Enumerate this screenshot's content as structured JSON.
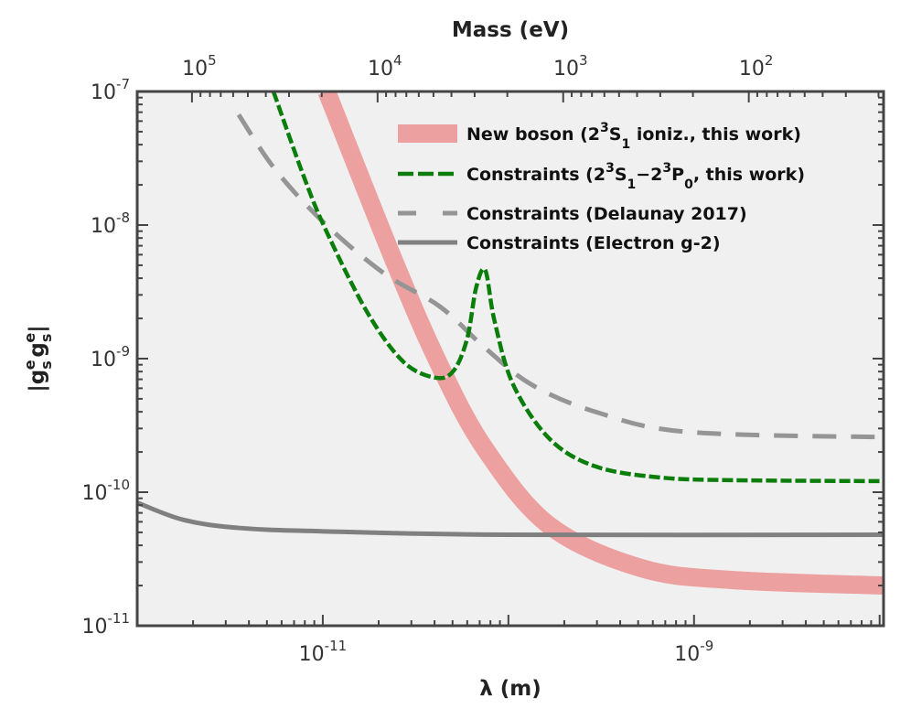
{
  "chart_data": {
    "type": "line",
    "xlabel": "λ (m)",
    "ylabel": "|g_s^e g_s^e|",
    "top_xlabel": "Mass (eV)",
    "xscale": "log",
    "yscale": "log",
    "xlim": [
      1e-12,
      1.05e-08
    ],
    "ylim": [
      1e-11,
      1e-07
    ],
    "x_ticks": [
      {
        "value": 1e-11,
        "base": "10",
        "exp": "-11"
      },
      {
        "value": 1e-09,
        "base": "10",
        "exp": "-9"
      }
    ],
    "y_ticks": [
      {
        "value": 1e-07,
        "base": "10",
        "exp": "-7"
      },
      {
        "value": 1e-08,
        "base": "10",
        "exp": "-8"
      },
      {
        "value": 1e-09,
        "base": "10",
        "exp": "-9"
      },
      {
        "value": 1e-10,
        "base": "10",
        "exp": "-10"
      },
      {
        "value": 1e-11,
        "base": "10",
        "exp": "-11"
      }
    ],
    "top_ticks": [
      {
        "mass_eV": 100000.0,
        "base": "10",
        "exp": "5"
      },
      {
        "mass_eV": 10000.0,
        "base": "10",
        "exp": "4"
      },
      {
        "mass_eV": 1000.0,
        "base": "10",
        "exp": "3"
      },
      {
        "mass_eV": 100.0,
        "base": "10",
        "exp": "2"
      }
    ],
    "background_color": "#f0f0f0",
    "legend_position": "top-right",
    "series": [
      {
        "name": "New boson (2³S₁ ioniz., this work)",
        "legend": {
          "pre": "New boson (2",
          "sup1": "3",
          "mid1": "S",
          "sub1": "1",
          "post": " ioniz., this work)"
        },
        "color": "#eda0a0",
        "style": "band",
        "x": [
          1.05e-11,
          2.42e-11,
          4.28e-11,
          7.5e-11,
          1.67e-10,
          5.2e-10,
          1.6e-09,
          1.06e-08
        ],
        "y": [
          1e-07,
          5.4e-09,
          8.8e-10,
          2.1e-10,
          5.6e-11,
          2.7e-11,
          2.2e-11,
          2e-11
        ]
      },
      {
        "name": "Constraints (2³S₁–2³P₀, this work)",
        "legend": {
          "pre": "Constraints (2",
          "sup1": "3",
          "mid1": "S",
          "sub1": "1",
          "mid2": "−2",
          "sup2": "3",
          "mid3": "P",
          "sub2": "0",
          "post": ", this work)"
        },
        "color": "#0a7d0a",
        "style": "dash-dot",
        "x": [
          5.42e-12,
          7.8e-12,
          1.03e-11,
          1.72e-11,
          2.71e-11,
          4.03e-11,
          5.06e-11,
          6e-11,
          6.7e-11,
          7.5e-11,
          8.4e-11,
          1.06e-10,
          1.67e-10,
          2.94e-10,
          6.5e-10,
          1.61e-09,
          1.06e-08
        ],
        "y": [
          1e-07,
          2.42e-08,
          9.4e-09,
          2.27e-09,
          9.5e-10,
          7.2e-10,
          8.1e-10,
          1.42e-09,
          3.4e-09,
          4.6e-09,
          1.94e-09,
          6.4e-10,
          2.5e-10,
          1.56e-10,
          1.29e-10,
          1.23e-10,
          1.21e-10
        ]
      },
      {
        "name": "Constraints (Delaunay 2017)",
        "color": "#959595",
        "style": "dashed",
        "x": [
          3.52e-12,
          5.55e-12,
          1.03e-11,
          2.16e-11,
          4.28e-11,
          7.5e-11,
          1.33e-10,
          2.94e-10,
          9.1e-10,
          1.06e-08
        ],
        "y": [
          6.7e-08,
          2.6e-08,
          1.02e-08,
          4.3e-09,
          2.45e-09,
          1.2e-09,
          6.4e-10,
          4e-10,
          2.83e-10,
          2.58e-10
        ]
      },
      {
        "name": "Constraints (Electron g-2)",
        "color": "#808080",
        "style": "solid",
        "x": [
          1.01e-12,
          1.78e-12,
          3.52e-12,
          9.8e-12,
          9.4e-11,
          1.06e-08
        ],
        "y": [
          8.3e-11,
          6.2e-11,
          5.4e-11,
          5.1e-11,
          4.8e-11,
          4.8e-11
        ]
      }
    ]
  }
}
